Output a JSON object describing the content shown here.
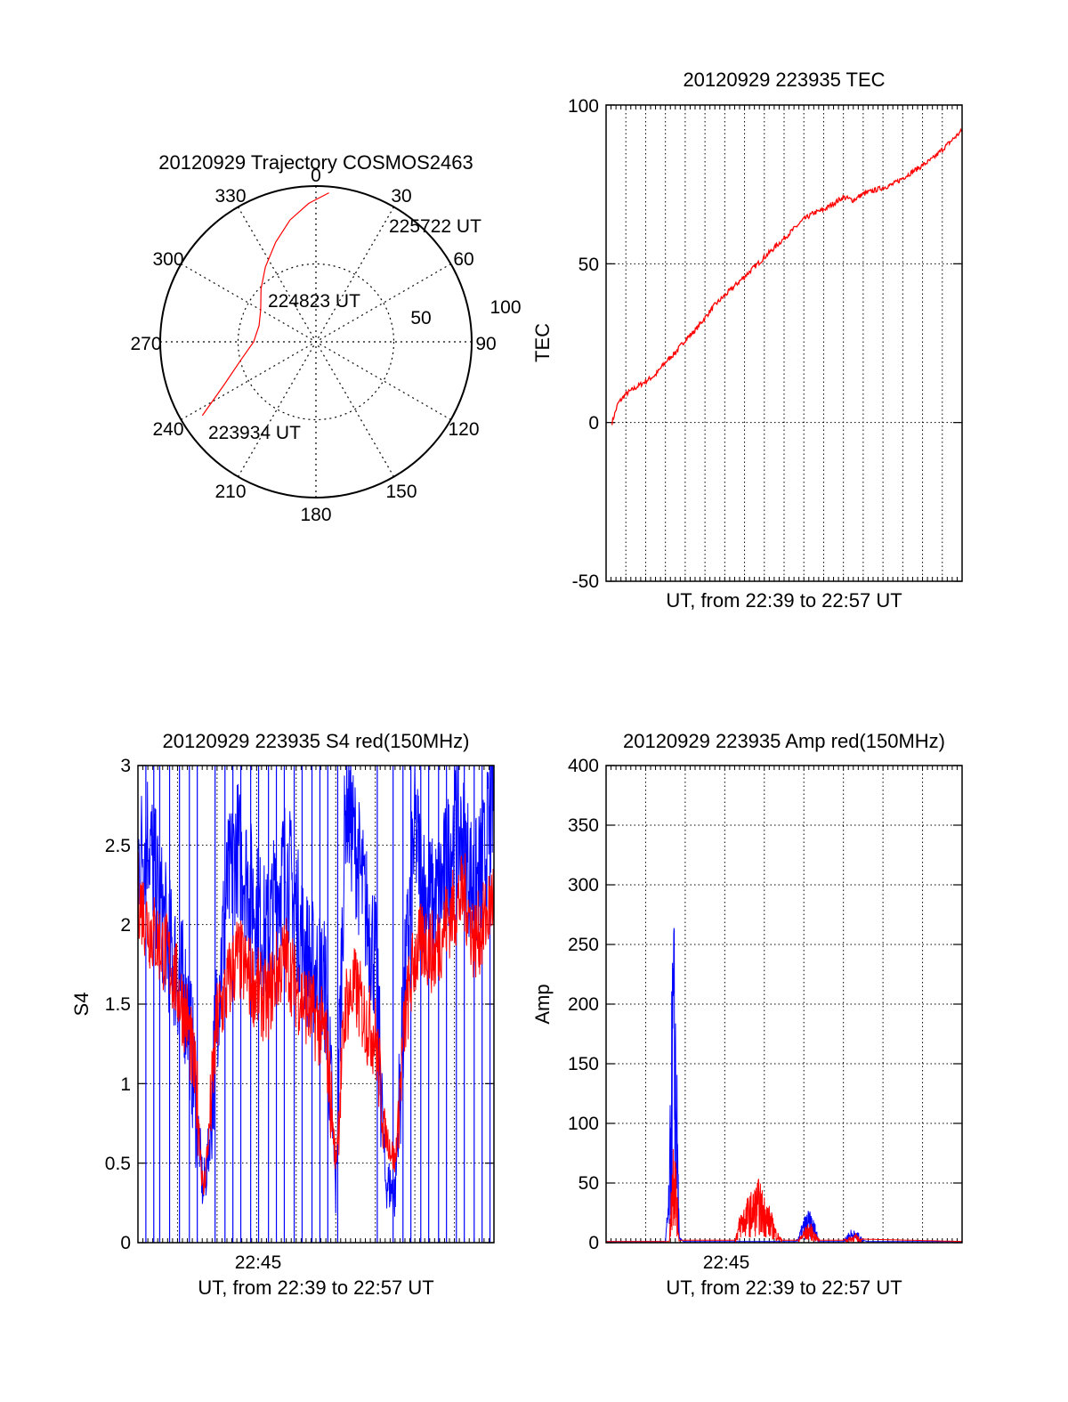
{
  "colors": {
    "primary": "#ff0000",
    "secondary": "#0000ff",
    "axis": "#000000",
    "grid": "#000000",
    "background": "#ffffff"
  },
  "chart_data": [
    {
      "id": "trajectory",
      "type": "polar",
      "title": "20120929 Trajectory COSMOS2463",
      "azimuth_ticks": [
        "0",
        "30",
        "60",
        "90",
        "120",
        "150",
        "180",
        "210",
        "240",
        "270",
        "300",
        "330"
      ],
      "radial_ticks": [
        "50",
        "100"
      ],
      "rlim": [
        0,
        100
      ],
      "grid": true,
      "series": [
        {
          "color": "#ff0000",
          "points": [
            [
              237,
              87
            ],
            [
              245,
              65
            ],
            [
              256,
              50
            ],
            [
              270,
              40
            ],
            [
              286,
              38
            ],
            [
              300,
              41
            ],
            [
              314,
              49
            ],
            [
              326,
              58
            ],
            [
              338,
              69
            ],
            [
              348,
              80
            ],
            [
              357,
              89
            ],
            [
              365,
              96
            ]
          ]
        }
      ],
      "annotations": [
        {
          "text": "225722 UT",
          "az": 36,
          "r": 100
        },
        {
          "text": "224823 UT",
          "az": 347,
          "r": 42
        },
        {
          "text": "223934 UT",
          "az": 219,
          "r": 84
        }
      ]
    },
    {
      "id": "tec",
      "type": "line",
      "title": "20120929 223935 TEC",
      "xlabel": "UT, from 22:39 to 22:57 UT",
      "ylabel": "TEC",
      "xlim": [
        0,
        18
      ],
      "ylim": [
        -50,
        100
      ],
      "yticks": [
        -50,
        0,
        50,
        100
      ],
      "ytick_labels": [
        "-50",
        "0",
        "50",
        "100"
      ],
      "grid": true,
      "series": [
        {
          "color": "#ff0000",
          "x": [
            0.3,
            0.6,
            1,
            1.5,
            2,
            2.5,
            3,
            3.5,
            4,
            4.5,
            5,
            5.5,
            6,
            6.5,
            7,
            7.5,
            8,
            8.5,
            9,
            9.5,
            10,
            10.5,
            11,
            11.5,
            12,
            12.5,
            13,
            13.5,
            14,
            14.5,
            15,
            15.5,
            16,
            16.5,
            17,
            17.5,
            18
          ],
          "y": [
            0,
            6,
            9,
            11,
            13,
            15,
            19,
            22,
            26,
            29,
            33,
            37,
            40,
            43,
            46,
            49,
            52,
            55,
            58,
            61,
            64,
            66,
            67,
            69,
            71,
            70,
            72,
            73,
            74,
            75,
            77,
            79,
            81,
            83,
            86,
            89,
            92
          ]
        }
      ]
    },
    {
      "id": "s4",
      "type": "line",
      "title": "20120929 223935 S4 red(150MHz)",
      "xlabel": "UT, from 22:39 to 22:57 UT",
      "ylabel": "S4",
      "xlim": [
        0,
        18
      ],
      "ylim": [
        0,
        3
      ],
      "xticks": [
        5
      ],
      "xtick_labels": [
        "22:45"
      ],
      "yticks": [
        0,
        0.5,
        1,
        1.5,
        2,
        2.5,
        3
      ],
      "ytick_labels": [
        "0",
        "0.5",
        "1",
        "1.5",
        "2",
        "2.5",
        "3"
      ],
      "grid": true,
      "series": [
        {
          "color": "#0000ff",
          "x": [
            0,
            0.5,
            1,
            1.5,
            2,
            2.5,
            3,
            3.3,
            3.6,
            4,
            4.5,
            5,
            5.5,
            6,
            6.5,
            7,
            7.5,
            8,
            8.5,
            9,
            9.5,
            10,
            10.5,
            11,
            11.5,
            12,
            12.5,
            13,
            13.5,
            14,
            14.5,
            15,
            15.5,
            16,
            16.5,
            17,
            17.5,
            18
          ],
          "y": [
            2.4,
            2.6,
            2.2,
            1.9,
            1.7,
            1.5,
            0.8,
            0.3,
            0.6,
            1.5,
            2.2,
            2.5,
            2.3,
            2.1,
            1.9,
            2.2,
            2.4,
            2.1,
            1.8,
            1.7,
            1.6,
            0.3,
            2.8,
            2.5,
            2.1,
            1.8,
            0.4,
            0.3,
            1.6,
            2.6,
            2.2,
            2.1,
            2.3,
            2.6,
            2.5,
            2.2,
            2.4,
            2.8
          ]
        },
        {
          "color": "#ff0000",
          "x": [
            0,
            0.5,
            1,
            1.5,
            2,
            2.5,
            3,
            3.3,
            3.6,
            4,
            4.5,
            5,
            5.5,
            6,
            6.5,
            7,
            7.5,
            8,
            8.5,
            9,
            9.5,
            10,
            10.5,
            11,
            11.5,
            12,
            12.5,
            13,
            13.5,
            14,
            14.5,
            15,
            15.5,
            16,
            16.5,
            17,
            17.5,
            18
          ],
          "y": [
            2.2,
            2.0,
            1.9,
            1.8,
            1.6,
            1.4,
            0.9,
            0.3,
            0.7,
            1.4,
            1.6,
            1.8,
            1.7,
            1.6,
            1.5,
            1.7,
            1.8,
            1.6,
            1.5,
            1.4,
            1.3,
            0.5,
            1.5,
            1.6,
            1.4,
            1.3,
            0.7,
            0.5,
            1.4,
            1.8,
            1.9,
            1.8,
            2.0,
            2.1,
            2.2,
            1.9,
            2.0,
            2.2
          ]
        }
      ],
      "spikes": {
        "color": "#0000ff",
        "x": [
          0.4,
          0.8,
          1.1,
          1.6,
          2.1,
          2.6,
          3.0,
          3.9,
          4.4,
          4.8,
          5.2,
          5.7,
          6.1,
          6.6,
          7.0,
          7.4,
          7.9,
          8.3,
          8.8,
          9.2,
          9.6,
          10.1,
          12.1,
          12.9,
          13.4,
          13.8,
          14.3,
          14.7,
          15.2,
          15.6,
          16.1,
          16.5,
          17.0,
          17.4,
          17.8
        ]
      }
    },
    {
      "id": "amp",
      "type": "line",
      "title": "20120929 223935 Amp red(150MHz)",
      "xlabel": "UT, from 22:39 to 22:57 UT",
      "ylabel": "Amp",
      "xlim": [
        0,
        18
      ],
      "ylim": [
        0,
        400
      ],
      "xticks": [
        5
      ],
      "xtick_labels": [
        "22:45"
      ],
      "yticks": [
        0,
        50,
        100,
        150,
        200,
        250,
        300,
        350,
        400
      ],
      "ytick_labels": [
        "0",
        "50",
        "100",
        "150",
        "200",
        "250",
        "300",
        "350",
        "400"
      ],
      "grid": true,
      "series": [
        {
          "color": "#0000ff",
          "x": [
            0,
            3.0,
            3.2,
            3.3,
            3.4,
            3.5,
            3.6,
            3.7,
            3.9,
            9.6,
            9.8,
            10,
            10.2,
            10.4,
            10.6,
            10.8,
            12.0,
            12.2,
            12.4,
            12.6,
            12.8,
            13.0,
            13.2,
            18
          ],
          "y": [
            1,
            1,
            60,
            200,
            300,
            250,
            130,
            5,
            1,
            1,
            10,
            22,
            28,
            25,
            15,
            1,
            1,
            8,
            12,
            10,
            8,
            2,
            1,
            1
          ]
        },
        {
          "color": "#ff0000",
          "x": [
            0,
            3.2,
            3.35,
            3.45,
            3.55,
            3.7,
            6.5,
            6.8,
            7.1,
            7.4,
            7.7,
            8.0,
            8.3,
            8.6,
            8.9,
            9.7,
            10.0,
            10.3,
            10.6,
            10.8,
            12.0,
            12.3,
            12.6,
            12.9,
            18
          ],
          "y": [
            1,
            1,
            80,
            125,
            60,
            2,
            2,
            28,
            38,
            45,
            55,
            42,
            30,
            12,
            2,
            2,
            12,
            18,
            8,
            2,
            2,
            5,
            8,
            3,
            1
          ]
        }
      ]
    }
  ]
}
